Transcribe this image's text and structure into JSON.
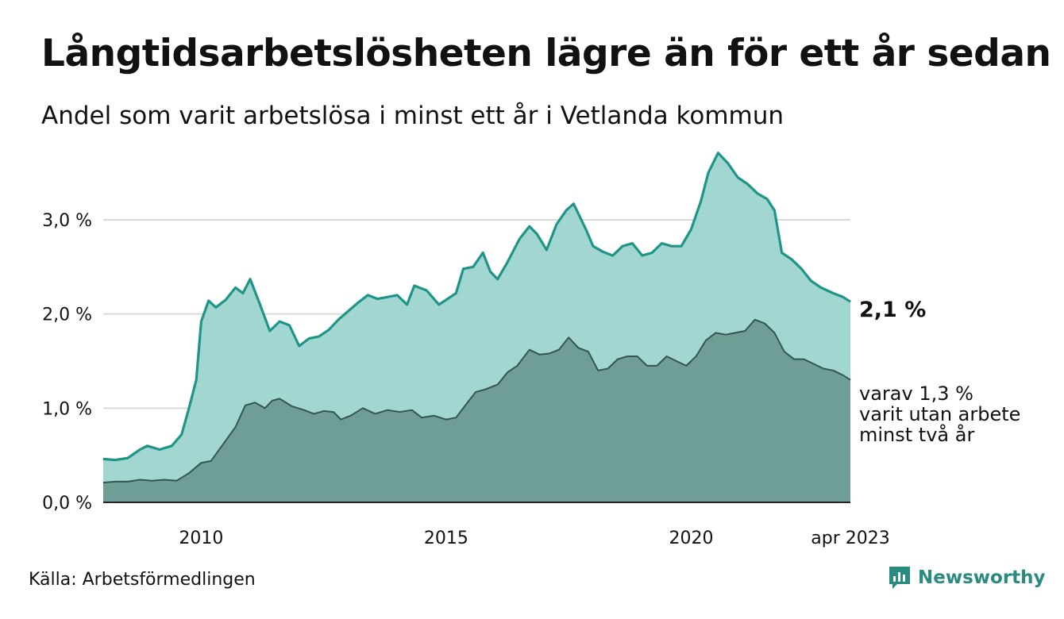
{
  "title": "Långtidsarbetslösheten lägre än för ett år sedan",
  "subtitle": "Andel som varit arbetslösa i minst ett år i Vetlanda kommun",
  "source": "Källa: Arbetsförmedlingen",
  "brand": "Newsworthy",
  "annotations": {
    "latest_total": "2,1 %",
    "latest_sub_line1": "varav 1,3 %",
    "latest_sub_line2": "varit utan arbete",
    "latest_sub_line3": "minst två år"
  },
  "colors": {
    "total_line": "#1f9488",
    "total_fill": "#a2d7d1",
    "sub_line": "#34564f",
    "sub_fill": "#6f9e97",
    "grid": "#d9d9d9",
    "brand": "#2a8a80"
  },
  "chart_data": {
    "type": "area",
    "ylim": [
      0,
      3.8
    ],
    "xlim": [
      2008.0,
      2023.25
    ],
    "y_ticks": [
      {
        "value": 0,
        "label": "0,0 %"
      },
      {
        "value": 1,
        "label": "1,0 %"
      },
      {
        "value": 2,
        "label": "2,0 %"
      },
      {
        "value": 3,
        "label": "3,0 %"
      }
    ],
    "x_ticks": [
      {
        "value": 2010,
        "label": "2010"
      },
      {
        "value": 2015,
        "label": "2015"
      },
      {
        "value": 2020,
        "label": "2020"
      },
      {
        "value": 2023.25,
        "label": "apr 2023"
      }
    ],
    "grid": true,
    "series": [
      {
        "values": [
          [
            2008.0,
            0.46
          ],
          [
            2008.25,
            0.45
          ],
          [
            2008.5,
            0.47
          ],
          [
            2008.75,
            0.56
          ],
          [
            2008.9,
            0.6
          ],
          [
            2009.15,
            0.56
          ],
          [
            2009.4,
            0.6
          ],
          [
            2009.6,
            0.72
          ],
          [
            2009.75,
            1.0
          ],
          [
            2009.9,
            1.3
          ],
          [
            2010.0,
            1.92
          ],
          [
            2010.15,
            2.14
          ],
          [
            2010.3,
            2.07
          ],
          [
            2010.5,
            2.15
          ],
          [
            2010.7,
            2.28
          ],
          [
            2010.85,
            2.22
          ],
          [
            2011.0,
            2.37
          ],
          [
            2011.2,
            2.1
          ],
          [
            2011.4,
            1.82
          ],
          [
            2011.6,
            1.92
          ],
          [
            2011.8,
            1.88
          ],
          [
            2012.0,
            1.66
          ],
          [
            2012.2,
            1.74
          ],
          [
            2012.4,
            1.76
          ],
          [
            2012.6,
            1.83
          ],
          [
            2012.8,
            1.94
          ],
          [
            2013.0,
            2.03
          ],
          [
            2013.2,
            2.12
          ],
          [
            2013.4,
            2.2
          ],
          [
            2013.6,
            2.16
          ],
          [
            2013.8,
            2.18
          ],
          [
            2014.0,
            2.2
          ],
          [
            2014.2,
            2.1
          ],
          [
            2014.35,
            2.3
          ],
          [
            2014.6,
            2.25
          ],
          [
            2014.85,
            2.1
          ],
          [
            2015.0,
            2.15
          ],
          [
            2015.2,
            2.22
          ],
          [
            2015.35,
            2.48
          ],
          [
            2015.55,
            2.5
          ],
          [
            2015.75,
            2.65
          ],
          [
            2015.9,
            2.45
          ],
          [
            2016.05,
            2.37
          ],
          [
            2016.25,
            2.55
          ],
          [
            2016.5,
            2.8
          ],
          [
            2016.7,
            2.93
          ],
          [
            2016.85,
            2.85
          ],
          [
            2017.05,
            2.68
          ],
          [
            2017.25,
            2.95
          ],
          [
            2017.45,
            3.1
          ],
          [
            2017.6,
            3.17
          ],
          [
            2017.85,
            2.9
          ],
          [
            2018.0,
            2.72
          ],
          [
            2018.2,
            2.66
          ],
          [
            2018.4,
            2.62
          ],
          [
            2018.6,
            2.72
          ],
          [
            2018.8,
            2.75
          ],
          [
            2019.0,
            2.62
          ],
          [
            2019.2,
            2.65
          ],
          [
            2019.4,
            2.75
          ],
          [
            2019.6,
            2.72
          ],
          [
            2019.8,
            2.72
          ],
          [
            2020.0,
            2.9
          ],
          [
            2020.2,
            3.2
          ],
          [
            2020.35,
            3.5
          ],
          [
            2020.55,
            3.71
          ],
          [
            2020.75,
            3.6
          ],
          [
            2020.95,
            3.45
          ],
          [
            2021.15,
            3.38
          ],
          [
            2021.35,
            3.28
          ],
          [
            2021.55,
            3.22
          ],
          [
            2021.7,
            3.1
          ],
          [
            2021.85,
            2.65
          ],
          [
            2022.05,
            2.58
          ],
          [
            2022.25,
            2.48
          ],
          [
            2022.45,
            2.35
          ],
          [
            2022.65,
            2.28
          ],
          [
            2022.9,
            2.22
          ],
          [
            2023.1,
            2.18
          ],
          [
            2023.25,
            2.13
          ]
        ]
      },
      {
        "values": [
          [
            2008.0,
            0.21
          ],
          [
            2008.25,
            0.22
          ],
          [
            2008.5,
            0.22
          ],
          [
            2008.75,
            0.24
          ],
          [
            2009.0,
            0.23
          ],
          [
            2009.25,
            0.24
          ],
          [
            2009.5,
            0.23
          ],
          [
            2009.75,
            0.31
          ],
          [
            2010.0,
            0.42
          ],
          [
            2010.2,
            0.44
          ],
          [
            2010.45,
            0.62
          ],
          [
            2010.7,
            0.8
          ],
          [
            2010.9,
            1.03
          ],
          [
            2011.1,
            1.06
          ],
          [
            2011.3,
            1.0
          ],
          [
            2011.45,
            1.08
          ],
          [
            2011.6,
            1.1
          ],
          [
            2011.85,
            1.02
          ],
          [
            2012.1,
            0.98
          ],
          [
            2012.3,
            0.94
          ],
          [
            2012.5,
            0.97
          ],
          [
            2012.7,
            0.96
          ],
          [
            2012.85,
            0.88
          ],
          [
            2013.05,
            0.92
          ],
          [
            2013.3,
            1.0
          ],
          [
            2013.55,
            0.94
          ],
          [
            2013.8,
            0.98
          ],
          [
            2014.05,
            0.96
          ],
          [
            2014.3,
            0.98
          ],
          [
            2014.5,
            0.9
          ],
          [
            2014.75,
            0.92
          ],
          [
            2015.0,
            0.88
          ],
          [
            2015.2,
            0.9
          ],
          [
            2015.45,
            1.07
          ],
          [
            2015.6,
            1.17
          ],
          [
            2015.8,
            1.2
          ],
          [
            2016.05,
            1.25
          ],
          [
            2016.25,
            1.38
          ],
          [
            2016.45,
            1.45
          ],
          [
            2016.7,
            1.62
          ],
          [
            2016.9,
            1.57
          ],
          [
            2017.1,
            1.58
          ],
          [
            2017.3,
            1.62
          ],
          [
            2017.5,
            1.75
          ],
          [
            2017.7,
            1.64
          ],
          [
            2017.9,
            1.6
          ],
          [
            2018.1,
            1.4
          ],
          [
            2018.3,
            1.42
          ],
          [
            2018.5,
            1.52
          ],
          [
            2018.7,
            1.55
          ],
          [
            2018.9,
            1.55
          ],
          [
            2019.1,
            1.45
          ],
          [
            2019.3,
            1.45
          ],
          [
            2019.5,
            1.55
          ],
          [
            2019.7,
            1.5
          ],
          [
            2019.9,
            1.45
          ],
          [
            2020.1,
            1.55
          ],
          [
            2020.3,
            1.72
          ],
          [
            2020.5,
            1.8
          ],
          [
            2020.7,
            1.78
          ],
          [
            2020.9,
            1.8
          ],
          [
            2021.1,
            1.82
          ],
          [
            2021.3,
            1.94
          ],
          [
            2021.5,
            1.9
          ],
          [
            2021.7,
            1.8
          ],
          [
            2021.9,
            1.6
          ],
          [
            2022.1,
            1.52
          ],
          [
            2022.3,
            1.52
          ],
          [
            2022.5,
            1.47
          ],
          [
            2022.7,
            1.42
          ],
          [
            2022.9,
            1.4
          ],
          [
            2023.1,
            1.35
          ],
          [
            2023.25,
            1.3
          ]
        ]
      }
    ]
  }
}
